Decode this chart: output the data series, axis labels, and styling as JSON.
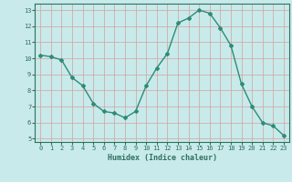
{
  "x": [
    0,
    1,
    2,
    3,
    4,
    5,
    6,
    7,
    8,
    9,
    10,
    11,
    12,
    13,
    14,
    15,
    16,
    17,
    18,
    19,
    20,
    21,
    22,
    23
  ],
  "y": [
    10.2,
    10.1,
    9.9,
    8.8,
    8.3,
    7.2,
    6.7,
    6.6,
    6.3,
    6.7,
    8.3,
    9.4,
    10.3,
    12.2,
    12.5,
    13.0,
    12.8,
    11.9,
    10.8,
    8.4,
    7.0,
    6.0,
    5.8,
    5.2
  ],
  "line_color": "#2e8b77",
  "marker": "D",
  "marker_size": 2.0,
  "bg_color": "#c8eaea",
  "grid_color": "#b0c8c8",
  "grid_color_v": "#d4a0a0",
  "xlabel": "Humidex (Indice chaleur)",
  "ylim": [
    4.8,
    13.4
  ],
  "xlim": [
    -0.5,
    23.5
  ],
  "yticks": [
    5,
    6,
    7,
    8,
    9,
    10,
    11,
    12,
    13
  ],
  "xticks": [
    0,
    1,
    2,
    3,
    4,
    5,
    6,
    7,
    8,
    9,
    10,
    11,
    12,
    13,
    14,
    15,
    16,
    17,
    18,
    19,
    20,
    21,
    22,
    23
  ],
  "tick_color": "#2e7060",
  "label_color": "#2e7060",
  "xlabel_fontsize": 6.0,
  "tick_fontsize": 5.0
}
